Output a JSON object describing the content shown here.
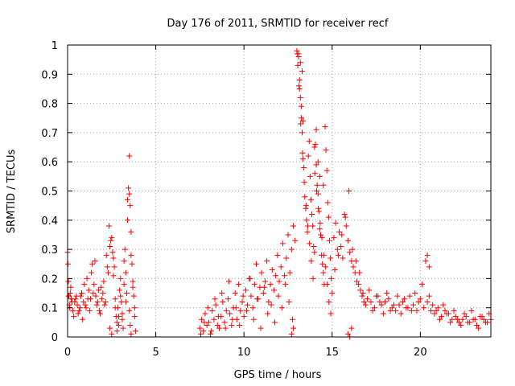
{
  "chart_data": {
    "type": "scatter",
    "title": "Day 176 of 2011, SRMTID for receiver recf",
    "xlabel": "GPS time / hours",
    "ylabel": "SRMTID / TECUs",
    "xlim": [
      0,
      24
    ],
    "ylim": [
      0,
      1
    ],
    "xticks": [
      0,
      5,
      10,
      15,
      20
    ],
    "yticks": [
      0,
      0.1,
      0.2,
      0.3,
      0.4,
      0.5,
      0.6,
      0.7,
      0.8,
      0.9,
      1
    ],
    "xtick_labels": [
      "0",
      "5",
      "10",
      "15",
      "20"
    ],
    "ytick_labels": [
      "0",
      "0.1",
      "0.2",
      "0.3",
      "0.4",
      "0.5",
      "0.6",
      "0.7",
      "0.8",
      "0.9",
      "1"
    ],
    "grid": true,
    "marker": "plus",
    "color": "#ff0000",
    "series": [
      {
        "name": "SRMTID",
        "x": [
          0.0,
          0.05,
          0.1,
          0.15,
          0.2,
          0.3,
          0.4,
          0.5,
          0.6,
          0.7,
          0.8,
          0.9,
          1.0,
          1.1,
          1.2,
          1.3,
          1.4,
          1.5,
          1.6,
          1.7,
          1.8,
          1.9,
          2.0,
          2.1,
          2.2,
          2.3,
          2.4,
          2.5,
          2.55,
          2.6,
          2.65,
          2.7,
          2.75,
          2.8,
          2.85,
          2.9,
          2.95,
          3.0,
          3.05,
          3.1,
          3.15,
          3.2,
          3.25,
          3.3,
          3.35,
          3.4,
          3.45,
          3.5,
          3.55,
          3.6,
          3.65,
          3.7,
          3.75,
          3.8,
          3.85,
          0.02,
          0.08,
          0.12,
          0.18,
          0.25,
          0.35,
          0.45,
          0.55,
          0.65,
          0.75,
          0.85,
          0.95,
          1.05,
          1.15,
          1.25,
          1.35,
          1.45,
          1.55,
          1.65,
          1.75,
          1.85,
          1.95,
          2.05,
          2.15,
          2.25,
          2.35,
          2.45,
          2.6,
          2.7,
          2.8,
          2.9,
          3.0,
          3.1,
          3.2,
          3.3,
          3.4,
          3.5,
          3.6,
          3.7,
          3.8,
          7.5,
          7.6,
          7.7,
          7.8,
          7.9,
          8.0,
          8.1,
          8.2,
          8.3,
          8.4,
          8.5,
          8.6,
          8.7,
          8.8,
          8.9,
          9.0,
          9.1,
          9.2,
          9.3,
          9.4,
          9.5,
          9.6,
          9.7,
          9.8,
          9.9,
          10.0,
          10.1,
          10.2,
          10.3,
          10.4,
          10.5,
          10.6,
          10.7,
          10.8,
          10.9,
          11.0,
          11.1,
          11.2,
          11.3,
          11.4,
          11.5,
          11.6,
          11.7,
          11.8,
          11.9,
          12.0,
          12.1,
          12.2,
          12.3,
          12.4,
          12.5,
          12.6,
          12.7,
          12.8,
          12.9,
          7.55,
          7.75,
          7.95,
          8.15,
          8.35,
          8.55,
          8.75,
          8.95,
          9.15,
          9.35,
          9.55,
          9.75,
          9.95,
          10.15,
          10.35,
          10.55,
          10.75,
          10.95,
          11.15,
          11.35,
          11.55,
          11.75,
          11.95,
          12.15,
          12.35,
          12.55,
          12.75,
          13.0,
          13.05,
          13.1,
          13.15,
          13.2,
          13.25,
          13.3,
          13.35,
          13.4,
          13.45,
          13.5,
          13.55,
          13.6,
          13.65,
          13.7,
          13.75,
          13.8,
          13.85,
          13.9,
          13.95,
          14.0,
          14.05,
          14.1,
          14.15,
          14.2,
          14.25,
          14.3,
          14.35,
          14.4,
          14.45,
          14.5,
          14.55,
          14.6,
          14.65,
          14.7,
          14.75,
          14.8,
          14.85,
          14.9,
          14.95,
          15.0,
          13.02,
          13.12,
          13.22,
          13.32,
          13.42,
          13.52,
          13.62,
          13.72,
          13.82,
          13.92,
          14.02,
          14.12,
          14.22,
          14.32,
          14.42,
          14.52,
          14.62,
          14.72,
          14.82,
          14.92,
          15.1,
          15.2,
          15.3,
          15.4,
          15.5,
          15.6,
          15.7,
          15.8,
          15.9,
          16.0,
          16.1,
          16.2,
          16.3,
          16.4,
          16.5,
          16.6,
          16.7,
          16.8,
          16.9,
          15.15,
          15.35,
          15.55,
          15.75,
          15.95,
          16.15,
          16.35,
          16.55,
          16.75,
          17.0,
          17.2,
          17.4,
          17.6,
          17.8,
          18.0,
          18.2,
          18.4,
          18.6,
          18.8,
          19.0,
          19.2,
          19.4,
          19.6,
          19.8,
          20.0,
          20.2,
          20.4,
          20.6,
          20.8,
          21.0,
          21.2,
          21.4,
          21.6,
          21.8,
          22.0,
          22.2,
          22.4,
          22.6,
          22.8,
          23.0,
          23.2,
          23.4,
          23.6,
          23.8,
          24.0,
          17.1,
          17.3,
          17.5,
          17.7,
          17.9,
          18.1,
          18.3,
          18.5,
          18.7,
          18.9,
          19.1,
          19.3,
          19.5,
          19.7,
          19.9,
          20.1,
          20.3,
          20.5,
          20.7,
          20.9,
          21.1,
          21.3,
          21.5,
          21.7,
          21.9,
          22.1,
          22.3,
          22.5,
          22.7,
          22.9,
          23.1,
          23.3,
          23.5,
          23.7,
          23.9,
          13.1,
          13.2,
          13.3,
          13.15,
          13.25,
          13.35,
          14.0,
          14.1,
          14.2,
          14.3,
          14.5,
          3.5,
          3.55,
          3.6,
          0.05,
          2.4,
          2.5,
          20.4,
          20.5,
          12.7,
          12.8,
          15.9,
          16.0,
          16.1
        ],
        "y": [
          0.29,
          0.19,
          0.11,
          0.15,
          0.13,
          0.09,
          0.12,
          0.14,
          0.08,
          0.1,
          0.15,
          0.12,
          0.11,
          0.2,
          0.16,
          0.13,
          0.25,
          0.18,
          0.14,
          0.12,
          0.09,
          0.17,
          0.15,
          0.11,
          0.28,
          0.22,
          0.31,
          0.34,
          0.29,
          0.27,
          0.24,
          0.13,
          0.07,
          0.05,
          0.1,
          0.04,
          0.16,
          0.2,
          0.12,
          0.08,
          0.03,
          0.18,
          0.3,
          0.22,
          0.15,
          0.47,
          0.51,
          0.49,
          0.45,
          0.36,
          0.25,
          0.19,
          0.14,
          0.1,
          0.02,
          0.25,
          0.14,
          0.1,
          0.17,
          0.12,
          0.07,
          0.13,
          0.11,
          0.09,
          0.14,
          0.06,
          0.18,
          0.1,
          0.13,
          0.09,
          0.22,
          0.15,
          0.26,
          0.11,
          0.16,
          0.08,
          0.13,
          0.19,
          0.12,
          0.24,
          0.38,
          0.33,
          0.21,
          0.1,
          0.02,
          0.07,
          0.14,
          0.06,
          0.26,
          0.12,
          0.4,
          0.62,
          0.28,
          0.17,
          0.07,
          0.03,
          0.06,
          0.02,
          0.08,
          0.04,
          0.05,
          0.01,
          0.09,
          0.06,
          0.11,
          0.04,
          0.03,
          0.07,
          0.12,
          0.05,
          0.09,
          0.13,
          0.08,
          0.04,
          0.1,
          0.15,
          0.06,
          0.18,
          0.09,
          0.12,
          0.07,
          0.16,
          0.11,
          0.2,
          0.14,
          0.1,
          0.18,
          0.25,
          0.13,
          0.17,
          0.22,
          0.15,
          0.19,
          0.26,
          0.12,
          0.18,
          0.23,
          0.16,
          0.21,
          0.28,
          0.19,
          0.24,
          0.32,
          0.21,
          0.27,
          0.35,
          0.22,
          0.3,
          0.38,
          0.33,
          0.01,
          0.05,
          0.1,
          0.02,
          0.13,
          0.07,
          0.15,
          0.03,
          0.19,
          0.06,
          0.1,
          0.04,
          0.14,
          0.09,
          0.2,
          0.06,
          0.13,
          0.03,
          0.17,
          0.08,
          0.11,
          0.05,
          0.14,
          0.1,
          0.18,
          0.12,
          0.06,
          0.98,
          0.93,
          0.96,
          0.88,
          0.82,
          0.75,
          0.7,
          0.61,
          0.58,
          0.48,
          0.44,
          0.4,
          0.36,
          0.62,
          0.67,
          0.55,
          0.47,
          0.42,
          0.38,
          0.31,
          0.29,
          0.66,
          0.59,
          0.52,
          0.49,
          0.43,
          0.37,
          0.35,
          0.28,
          0.25,
          0.22,
          0.18,
          0.72,
          0.64,
          0.57,
          0.46,
          0.41,
          0.33,
          0.27,
          0.2,
          0.15,
          0.97,
          0.86,
          0.73,
          0.63,
          0.53,
          0.45,
          0.38,
          0.32,
          0.26,
          0.2,
          0.56,
          0.5,
          0.44,
          0.39,
          0.34,
          0.28,
          0.24,
          0.18,
          0.12,
          0.08,
          0.34,
          0.39,
          0.3,
          0.36,
          0.31,
          0.27,
          0.42,
          0.38,
          0.33,
          0.29,
          0.26,
          0.24,
          0.22,
          0.19,
          0.18,
          0.16,
          0.14,
          0.12,
          0.11,
          0.23,
          0.28,
          0.35,
          0.41,
          0.5,
          0.3,
          0.26,
          0.22,
          0.15,
          0.13,
          0.12,
          0.1,
          0.14,
          0.11,
          0.12,
          0.13,
          0.1,
          0.09,
          0.11,
          0.12,
          0.1,
          0.14,
          0.11,
          0.09,
          0.13,
          0.1,
          0.12,
          0.09,
          0.08,
          0.1,
          0.07,
          0.09,
          0.08,
          0.06,
          0.07,
          0.05,
          0.06,
          0.07,
          0.05,
          0.06,
          0.04,
          0.07,
          0.06,
          0.05,
          0.06,
          0.16,
          0.09,
          0.14,
          0.12,
          0.08,
          0.15,
          0.09,
          0.11,
          0.14,
          0.08,
          0.13,
          0.1,
          0.09,
          0.15,
          0.12,
          0.18,
          0.26,
          0.14,
          0.11,
          0.09,
          0.06,
          0.11,
          0.08,
          0.05,
          0.09,
          0.06,
          0.04,
          0.08,
          0.05,
          0.09,
          0.06,
          0.03,
          0.07,
          0.05,
          0.08,
          0.97,
          0.94,
          0.91,
          0.85,
          0.79,
          0.74,
          0.65,
          0.71,
          0.6,
          0.55,
          0.52,
          0.09,
          0.04,
          0.01,
          0.14,
          0.03,
          0.01,
          0.28,
          0.24,
          0.01,
          0.03,
          0.01,
          0.0,
          0.03
        ]
      }
    ]
  }
}
